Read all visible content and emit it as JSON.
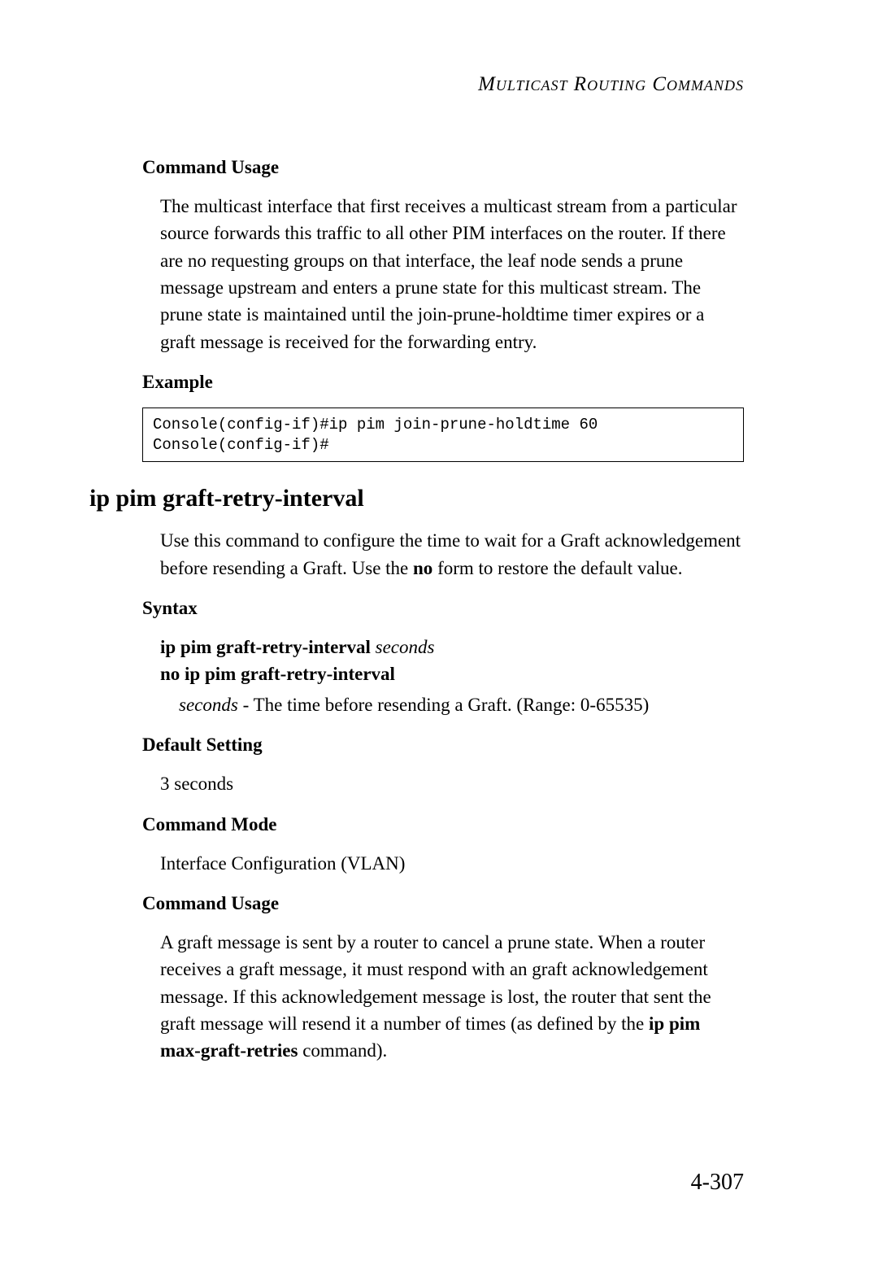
{
  "header": {
    "title": "Multicast Routing Commands"
  },
  "section1": {
    "heading": "Command Usage",
    "body": "The multicast interface that first receives a multicast stream from a particular source forwards this traffic to all other PIM interfaces on the router. If there are no requesting groups on that interface, the leaf node sends a prune message upstream and enters a prune state for this multicast stream. The prune state is maintained until the join-prune-holdtime timer expires or a graft message is received for the forwarding entry."
  },
  "section2": {
    "heading": "Example",
    "code": "Console(config-if)#ip pim join-prune-holdtime 60\nConsole(config-if)#"
  },
  "command": {
    "title": "ip pim graft-retry-interval",
    "intro_part1": "Use this command to configure the time to wait for a Graft acknowledgement before resending a Graft. Use the ",
    "intro_bold": "no",
    "intro_part2": " form to restore the default value."
  },
  "syntax": {
    "heading": "Syntax",
    "line1_bold": "ip pim graft-retry-interval",
    "line1_italic": " seconds",
    "line2_bold": "no ip pim graft-retry-interval",
    "param_italic": "seconds",
    "param_text": " - The time before resending a Graft. (Range: 0-65535)"
  },
  "default_setting": {
    "heading": "Default Setting",
    "body": "3 seconds"
  },
  "command_mode": {
    "heading": "Command Mode",
    "body": "Interface Configuration (VLAN)"
  },
  "command_usage2": {
    "heading": "Command Usage",
    "body_part1": "A graft message is sent by a router to cancel a prune state. When a router receives a graft message, it must respond with an graft acknowledgement message. If this acknowledgement message is lost, the router that sent the graft message will resend it a number of times (as defined by the ",
    "body_bold": "ip pim max-graft-retries",
    "body_part2": " command)."
  },
  "page_number": "4-307"
}
